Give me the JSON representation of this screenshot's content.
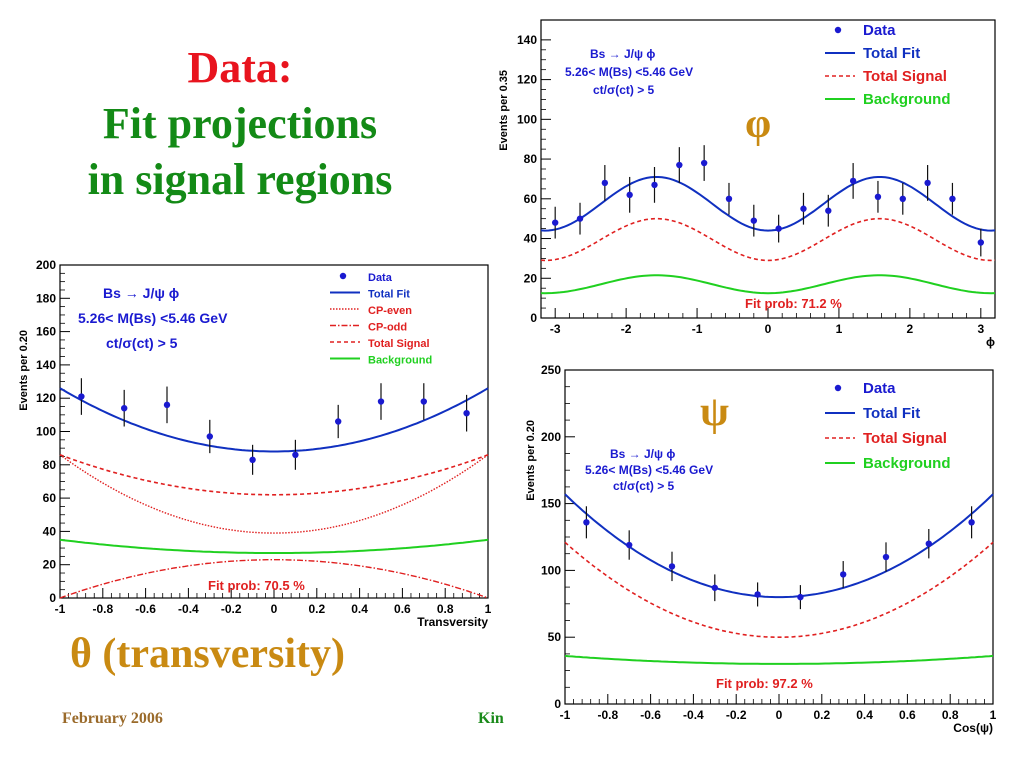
{
  "slide": {
    "title_line1": "Data:",
    "title_line2": "Fit projections",
    "title_line3": "in signal regions",
    "footer_date": "February 2006",
    "footer_name": "Kin",
    "label_theta": "θ (transversity)",
    "label_phi": "φ",
    "label_psi": "ψ"
  },
  "colors": {
    "data": "#1a1ad0",
    "total_fit": "#1030c0",
    "signal": "#e02020",
    "background": "#20d020",
    "title_red": "#e8141e",
    "title_green": "#138a16",
    "angle_gold": "#c98a12"
  },
  "chart_data": [
    {
      "id": "phi",
      "type": "scatter",
      "xlabel": "ϕ",
      "ylabel": "Events per 0.35",
      "xlim": [
        -3.2,
        3.2
      ],
      "ylim": [
        0,
        150
      ],
      "xticks": [
        -3,
        -2,
        -1,
        0,
        1,
        2,
        3
      ],
      "yticks": [
        0,
        20,
        40,
        60,
        80,
        100,
        120,
        140
      ],
      "info_lines": [
        "Bs → J/ψ ϕ",
        "5.26< M(Bs) <5.46 GeV",
        "ct/σ(ct) > 5"
      ],
      "fit_prob": "Fit prob: 71.2 %",
      "legend": [
        "Data",
        "Total Fit",
        "Total Signal",
        "Background"
      ],
      "data": [
        {
          "x": -3.0,
          "y": 48,
          "err": 8
        },
        {
          "x": -2.65,
          "y": 50,
          "err": 8
        },
        {
          "x": -2.3,
          "y": 68,
          "err": 9
        },
        {
          "x": -1.95,
          "y": 62,
          "err": 9
        },
        {
          "x": -1.6,
          "y": 67,
          "err": 9
        },
        {
          "x": -1.25,
          "y": 77,
          "err": 9
        },
        {
          "x": -0.9,
          "y": 78,
          "err": 9
        },
        {
          "x": -0.55,
          "y": 60,
          "err": 8
        },
        {
          "x": -0.2,
          "y": 49,
          "err": 8
        },
        {
          "x": 0.15,
          "y": 45,
          "err": 7
        },
        {
          "x": 0.5,
          "y": 55,
          "err": 8
        },
        {
          "x": 0.85,
          "y": 54,
          "err": 8
        },
        {
          "x": 1.2,
          "y": 69,
          "err": 9
        },
        {
          "x": 1.55,
          "y": 61,
          "err": 8
        },
        {
          "x": 1.9,
          "y": 60,
          "err": 8
        },
        {
          "x": 2.25,
          "y": 68,
          "err": 9
        },
        {
          "x": 2.6,
          "y": 60,
          "err": 8
        },
        {
          "x": 3.0,
          "y": 38,
          "err": 7
        }
      ],
      "curves": {
        "total_fit": {
          "offset": 57.5,
          "amp": -13.5,
          "freq": 2
        },
        "total_signal": {
          "offset": 39.5,
          "amp": -10.5,
          "freq": 2
        },
        "background": {
          "offset": 17,
          "amp": -4.5,
          "freq": 2
        }
      }
    },
    {
      "id": "transversity",
      "type": "scatter",
      "xlabel": "Transversity",
      "ylabel": "Events per 0.20",
      "xlim": [
        -1,
        1
      ],
      "ylim": [
        0,
        200
      ],
      "xticks": [
        -1,
        -0.8,
        -0.6,
        -0.4,
        -0.2,
        0,
        0.2,
        0.4,
        0.6,
        0.8,
        1
      ],
      "yticks": [
        0,
        20,
        40,
        60,
        80,
        100,
        120,
        140,
        160,
        180,
        200
      ],
      "info_lines": [
        "Bs → J/ψ ϕ",
        "5.26< M(Bs) <5.46 GeV",
        "ct/σ(ct) > 5"
      ],
      "fit_prob": "Fit prob: 70.5 %",
      "legend": [
        "Data",
        "Total Fit",
        "CP-even",
        "CP-odd",
        "Total Signal",
        "Background"
      ],
      "data": [
        {
          "x": -0.9,
          "y": 121,
          "err": 11
        },
        {
          "x": -0.7,
          "y": 114,
          "err": 11
        },
        {
          "x": -0.5,
          "y": 116,
          "err": 11
        },
        {
          "x": -0.3,
          "y": 97,
          "err": 10
        },
        {
          "x": -0.1,
          "y": 83,
          "err": 9
        },
        {
          "x": 0.1,
          "y": 86,
          "err": 9
        },
        {
          "x": 0.3,
          "y": 106,
          "err": 10
        },
        {
          "x": 0.5,
          "y": 118,
          "err": 11
        },
        {
          "x": 0.7,
          "y": 118,
          "err": 11
        },
        {
          "x": 0.9,
          "y": 111,
          "err": 11
        }
      ],
      "curves": {
        "total_fit": {
          "a": 88,
          "b": 38
        },
        "cp_even": {
          "a": 39,
          "b": 47
        },
        "cp_odd": {
          "a": 23,
          "b": -23
        },
        "total_signal": {
          "a": 62,
          "b": 24
        },
        "background": {
          "a": 27,
          "b": 8
        }
      }
    },
    {
      "id": "psi",
      "type": "scatter",
      "xlabel": "Cos(ψ)",
      "ylabel": "Events per 0.20",
      "xlim": [
        -1,
        1
      ],
      "ylim": [
        0,
        250
      ],
      "xticks": [
        -1,
        -0.8,
        -0.6,
        -0.4,
        -0.2,
        0,
        0.2,
        0.4,
        0.6,
        0.8,
        1
      ],
      "yticks": [
        0,
        50,
        100,
        150,
        200,
        250
      ],
      "info_lines": [
        "Bs → J/ψ ϕ",
        "5.26< M(Bs) <5.46 GeV",
        "ct/σ(ct) > 5"
      ],
      "fit_prob": "Fit prob: 97.2 %",
      "legend": [
        "Data",
        "Total Fit",
        "Total Signal",
        "Background"
      ],
      "data": [
        {
          "x": -0.9,
          "y": 136,
          "err": 12
        },
        {
          "x": -0.7,
          "y": 119,
          "err": 11
        },
        {
          "x": -0.5,
          "y": 103,
          "err": 11
        },
        {
          "x": -0.3,
          "y": 87,
          "err": 10
        },
        {
          "x": -0.1,
          "y": 82,
          "err": 9
        },
        {
          "x": 0.1,
          "y": 80,
          "err": 9
        },
        {
          "x": 0.3,
          "y": 97,
          "err": 10
        },
        {
          "x": 0.5,
          "y": 110,
          "err": 11
        },
        {
          "x": 0.7,
          "y": 120,
          "err": 11
        },
        {
          "x": 0.9,
          "y": 136,
          "err": 12
        }
      ],
      "curves": {
        "total_fit": {
          "a": 80,
          "b": 77
        },
        "total_signal": {
          "a": 50,
          "b": 71
        },
        "background": {
          "a": 30,
          "b": 6
        }
      }
    }
  ]
}
